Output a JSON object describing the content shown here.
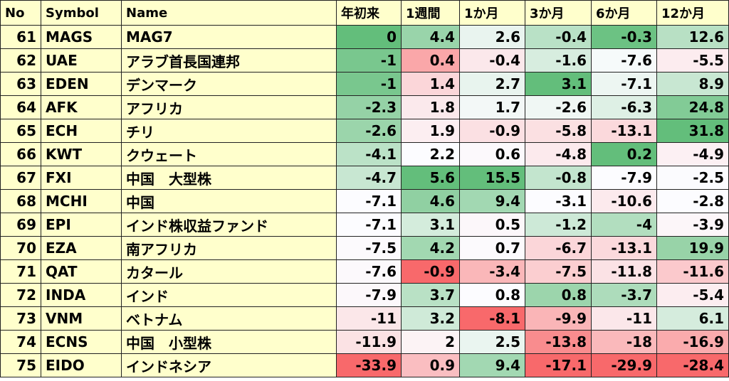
{
  "table": {
    "columns": [
      "No",
      "Symbol",
      "Name",
      "年初来",
      "1週間",
      "1か月",
      "3か月",
      "6か月",
      "12か月"
    ],
    "rows": [
      [
        61,
        "MAGS",
        "MAG7",
        0,
        4.4,
        2.6,
        -0.4,
        -0.3,
        12.6
      ],
      [
        62,
        "UAE",
        "アラブ首長国連邦",
        -1,
        0.4,
        -0.4,
        -1.6,
        -7.6,
        -5.5
      ],
      [
        63,
        "EDEN",
        "デンマーク",
        -1,
        1.4,
        2.7,
        3.1,
        -7.1,
        8.9
      ],
      [
        64,
        "AFK",
        "アフリカ",
        -2.3,
        1.8,
        1.7,
        -2.6,
        -6.3,
        24.8
      ],
      [
        65,
        "ECH",
        "チリ",
        -2.6,
        1.9,
        -0.9,
        -5.8,
        -13.1,
        31.8
      ],
      [
        66,
        "KWT",
        "クウェート",
        -4.1,
        2.2,
        0.6,
        -4.8,
        0.2,
        -4.9
      ],
      [
        67,
        "FXI",
        "中国　大型株",
        -4.7,
        5.6,
        15.5,
        -0.8,
        -7.9,
        -2.5
      ],
      [
        68,
        "MCHI",
        "中国",
        -7.1,
        4.6,
        9.4,
        -3.1,
        -10.6,
        -2.8
      ],
      [
        69,
        "EPI",
        "インド株収益ファンド",
        -7.1,
        3.1,
        0.5,
        -1.2,
        -4,
        -3.9
      ],
      [
        70,
        "EZA",
        "南アフリカ",
        -7.5,
        4.2,
        0.7,
        -6.7,
        -13.1,
        19.9
      ],
      [
        71,
        "QAT",
        "カタール",
        -7.6,
        -0.9,
        -3.4,
        -7.5,
        -11.8,
        -11.6
      ],
      [
        72,
        "INDA",
        "インド",
        -7.9,
        3.7,
        0.8,
        0.8,
        -3.7,
        -5.4
      ],
      [
        73,
        "VNM",
        "ベトナム",
        -11,
        3.2,
        -8.1,
        -9.9,
        -11,
        6.1
      ],
      [
        74,
        "ECNS",
        "中国　小型株",
        -11.9,
        2,
        2.5,
        -13.8,
        -18,
        -16.9
      ],
      [
        75,
        "EIDO",
        "インドネシア",
        -33.9,
        0.9,
        9.4,
        -17.1,
        -29.9,
        -28.4
      ]
    ]
  }
}
